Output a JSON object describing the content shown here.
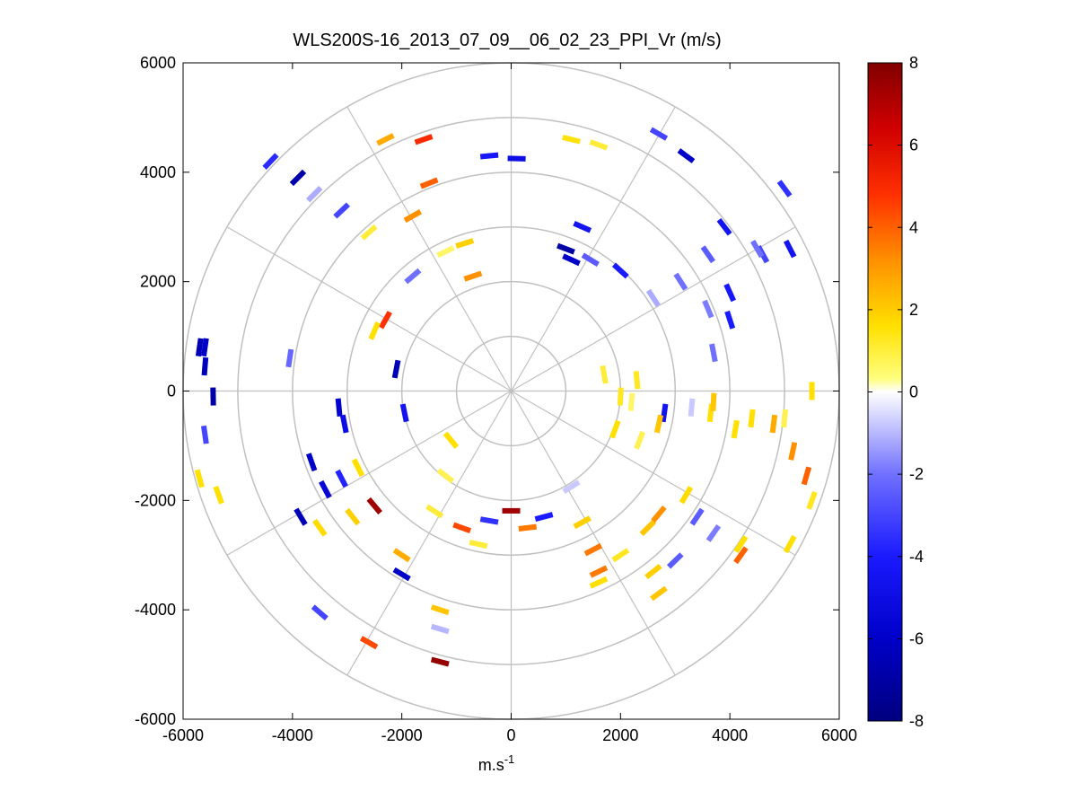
{
  "chart_data": {
    "type": "scatter",
    "subtype": "polar-ppi",
    "title": "WLS200S-16_2013_07_09__06_02_23_PPI_Vr (m/s)",
    "xlabel": "m.s",
    "xlabel_superscript": "-1",
    "ylabel": "",
    "xlim": [
      -6000,
      6000
    ],
    "ylim": [
      -6000,
      6000
    ],
    "xticks": [
      "-6000",
      "-4000",
      "-2000",
      "0",
      "2000",
      "4000",
      "6000"
    ],
    "yticks": [
      "6000",
      "4000",
      "2000",
      "0",
      "-2000",
      "-4000",
      "-6000"
    ],
    "grid": true,
    "range_rings": [
      1000,
      2000,
      3000,
      4000,
      5000,
      6000
    ],
    "spoke_angles_deg": [
      0,
      30,
      60,
      90,
      120,
      150,
      180,
      210,
      240,
      270,
      300,
      330
    ],
    "colorbar": {
      "label": "Vr (m/s)",
      "range": [
        -8,
        8
      ],
      "ticks": [
        "8",
        "6",
        "4",
        "2",
        "0",
        "-2",
        "-4",
        "-6",
        "-8"
      ],
      "colormap": "blue-white-yellow-red"
    },
    "points": [
      [
        -5700,
        800,
        -6.5
      ],
      [
        -5600,
        800,
        -6.0
      ],
      [
        -5600,
        450,
        -6.2
      ],
      [
        -5450,
        -100,
        -6.8
      ],
      [
        -5600,
        -800,
        -3.0
      ],
      [
        -5700,
        -1600,
        1.5
      ],
      [
        -5350,
        -1900,
        1.5
      ],
      [
        -4400,
        4200,
        -3.6
      ],
      [
        -3900,
        3900,
        -6.8
      ],
      [
        -3600,
        3600,
        -1.0
      ],
      [
        -3100,
        3300,
        -3.0
      ],
      [
        -2600,
        2900,
        1.0
      ],
      [
        -4050,
        600,
        -2.2
      ],
      [
        -3150,
        -300,
        -5.8
      ],
      [
        -3050,
        -600,
        -5.0
      ],
      [
        -3650,
        -1300,
        -6.0
      ],
      [
        -3400,
        -1800,
        -5.5
      ],
      [
        -3100,
        -1600,
        -3.8
      ],
      [
        -3850,
        -2300,
        -6.5
      ],
      [
        -3500,
        -2500,
        1.6
      ],
      [
        -2800,
        -1400,
        1.5
      ],
      [
        -2500,
        -2100,
        7.4
      ],
      [
        -2900,
        -2300,
        1.8
      ],
      [
        -2000,
        -3000,
        2.5
      ],
      [
        -2000,
        -3350,
        -6.0
      ],
      [
        -1300,
        -4000,
        2.0
      ],
      [
        -1300,
        -4350,
        -0.8
      ],
      [
        -2600,
        -4600,
        4.5
      ],
      [
        -3500,
        -4050,
        -3.0
      ],
      [
        -1300,
        -4950,
        7.6
      ],
      [
        -2300,
        4600,
        2.5
      ],
      [
        -1600,
        4600,
        5.2
      ],
      [
        -400,
        4300,
        -4.2
      ],
      [
        -1500,
        3800,
        4.0
      ],
      [
        -1800,
        3200,
        3.0
      ],
      [
        -850,
        2700,
        1.8
      ],
      [
        -1200,
        2550,
        0.6
      ],
      [
        -700,
        2100,
        3.0
      ],
      [
        -1800,
        2100,
        -2.0
      ],
      [
        -2300,
        1300,
        5.0
      ],
      [
        -2500,
        1100,
        1.5
      ],
      [
        -2100,
        400,
        -6.5
      ],
      [
        -1950,
        -400,
        -4.5
      ],
      [
        -1100,
        -900,
        1.5
      ],
      [
        -1200,
        -1550,
        0.8
      ],
      [
        -1400,
        -2200,
        1.0
      ],
      [
        -900,
        -2500,
        4.5
      ],
      [
        -600,
        -2800,
        1.0
      ],
      [
        -400,
        -2370,
        -3.5
      ],
      [
        0,
        -2190,
        7.4
      ],
      [
        300,
        -2500,
        3.5
      ],
      [
        600,
        -2300,
        -4.0
      ],
      [
        1100,
        -1750,
        -0.5
      ],
      [
        1300,
        -2400,
        1.8
      ],
      [
        1500,
        -2900,
        3.5
      ],
      [
        1600,
        -3300,
        3.5
      ],
      [
        1600,
        -3500,
        1.5
      ],
      [
        2000,
        -3000,
        1.2
      ],
      [
        2500,
        -2500,
        2.0
      ],
      [
        2700,
        -2250,
        3.0
      ],
      [
        3200,
        -1900,
        1.6
      ],
      [
        3400,
        -2300,
        -2.5
      ],
      [
        3700,
        -2600,
        -1.8
      ],
      [
        3000,
        -3100,
        -2.5
      ],
      [
        2600,
        -3300,
        1.8
      ],
      [
        2700,
        -3700,
        2.0
      ],
      [
        4200,
        -2800,
        1.5
      ],
      [
        4200,
        -3000,
        4.0
      ],
      [
        5100,
        -2800,
        1.5
      ],
      [
        5500,
        -2000,
        1.2
      ],
      [
        5400,
        -1550,
        4.0
      ],
      [
        5150,
        -1100,
        3.0
      ],
      [
        5000,
        -500,
        0.8
      ],
      [
        5500,
        0,
        1.5
      ],
      [
        4800,
        -600,
        2.5
      ],
      [
        4400,
        -500,
        1.5
      ],
      [
        4100,
        -700,
        1.5
      ],
      [
        3650,
        -400,
        1.5
      ],
      [
        3700,
        -200,
        2.0
      ],
      [
        3300,
        -300,
        -0.5
      ],
      [
        2800,
        -400,
        -4.5
      ],
      [
        2700,
        -600,
        2.0
      ],
      [
        2350,
        -900,
        0.8
      ],
      [
        1900,
        -700,
        1.5
      ],
      [
        2200,
        -200,
        0.6
      ],
      [
        2300,
        200,
        1.2
      ],
      [
        2000,
        -100,
        1.2
      ],
      [
        1700,
        300,
        1.0
      ],
      [
        3700,
        700,
        -2.0
      ],
      [
        3600,
        1500,
        -1.8
      ],
      [
        4000,
        1300,
        -4.0
      ],
      [
        4000,
        1800,
        -4.2
      ],
      [
        4600,
        2500,
        -3.0
      ],
      [
        5100,
        2600,
        -4.5
      ],
      [
        5000,
        3700,
        -3.5
      ],
      [
        3600,
        2500,
        -2.5
      ],
      [
        3100,
        2000,
        -2.0
      ],
      [
        2600,
        1700,
        -1.0
      ],
      [
        2000,
        2200,
        -4.0
      ],
      [
        1450,
        2400,
        -2.5
      ],
      [
        1100,
        2400,
        -6.0
      ],
      [
        1000,
        2600,
        -7.0
      ],
      [
        2700,
        4700,
        -3.0
      ],
      [
        3200,
        4300,
        -6.0
      ],
      [
        1100,
        4600,
        1.4
      ],
      [
        1600,
        4500,
        1.0
      ],
      [
        3900,
        3000,
        -4.5
      ],
      [
        4500,
        2600,
        -2.0
      ],
      [
        1300,
        3000,
        -4.5
      ],
      [
        100,
        4250,
        -5.0
      ]
    ]
  }
}
